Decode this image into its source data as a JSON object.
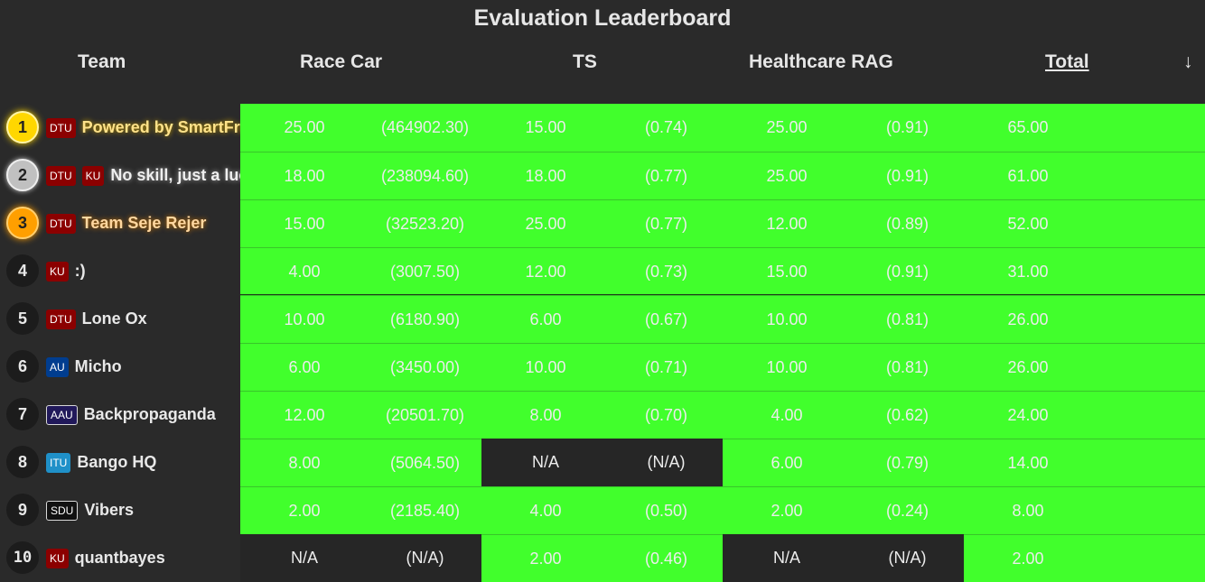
{
  "title": "Evaluation Leaderboard",
  "headers": {
    "team": "Team",
    "race_car": "Race Car",
    "ts": "TS",
    "healthcare_rag": "Healthcare RAG",
    "total": "Total",
    "sort_arrow": "↓"
  },
  "colors": {
    "green": "#41ff2c",
    "na_background": "#262626",
    "gold": "#ffd700",
    "silver": "#c0c0c0",
    "bronze": "#ff9f00"
  },
  "rows": [
    {
      "rank": "1",
      "uni": [
        "DTU"
      ],
      "team": "Powered by SmartFrames",
      "race_score": "25.00",
      "race_raw": "(464902.30)",
      "ts_score": "15.00",
      "ts_raw": "(0.74)",
      "rag_score": "25.00",
      "rag_raw": "(0.91)",
      "total": "65.00"
    },
    {
      "rank": "2",
      "uni": [
        "DTU",
        "KU"
      ],
      "team": "No skill, just a luck",
      "race_score": "18.00",
      "race_raw": "(238094.60)",
      "ts_score": "18.00",
      "ts_raw": "(0.77)",
      "rag_score": "25.00",
      "rag_raw": "(0.91)",
      "total": "61.00"
    },
    {
      "rank": "3",
      "uni": [
        "DTU"
      ],
      "team": "Team Seje Rejer",
      "race_score": "15.00",
      "race_raw": "(32523.20)",
      "ts_score": "25.00",
      "ts_raw": "(0.77)",
      "rag_score": "12.00",
      "rag_raw": "(0.89)",
      "total": "52.00"
    },
    {
      "rank": "4",
      "uni": [
        "KU"
      ],
      "team": ":)",
      "race_score": "4.00",
      "race_raw": "(3007.50)",
      "ts_score": "12.00",
      "ts_raw": "(0.73)",
      "rag_score": "15.00",
      "rag_raw": "(0.91)",
      "total": "31.00"
    },
    {
      "rank": "5",
      "uni": [
        "DTU"
      ],
      "team": "Lone Ox",
      "race_score": "10.00",
      "race_raw": "(6180.90)",
      "ts_score": "6.00",
      "ts_raw": "(0.67)",
      "rag_score": "10.00",
      "rag_raw": "(0.81)",
      "total": "26.00"
    },
    {
      "rank": "6",
      "uni": [
        "AU"
      ],
      "team": "Micho",
      "race_score": "6.00",
      "race_raw": "(3450.00)",
      "ts_score": "10.00",
      "ts_raw": "(0.71)",
      "rag_score": "10.00",
      "rag_raw": "(0.81)",
      "total": "26.00"
    },
    {
      "rank": "7",
      "uni": [
        "AAU"
      ],
      "team": "Backpropaganda",
      "race_score": "12.00",
      "race_raw": "(20501.70)",
      "ts_score": "8.00",
      "ts_raw": "(0.70)",
      "rag_score": "4.00",
      "rag_raw": "(0.62)",
      "total": "24.00"
    },
    {
      "rank": "8",
      "uni": [
        "ITU"
      ],
      "team": "Bango HQ",
      "race_score": "8.00",
      "race_raw": "(5064.50)",
      "ts_score": "N/A",
      "ts_raw": "(N/A)",
      "rag_score": "6.00",
      "rag_raw": "(0.79)",
      "total": "14.00"
    },
    {
      "rank": "9",
      "uni": [
        "SDU"
      ],
      "team": "Vibers",
      "race_score": "2.00",
      "race_raw": "(2185.40)",
      "ts_score": "4.00",
      "ts_raw": "(0.50)",
      "rag_score": "2.00",
      "rag_raw": "(0.24)",
      "total": "8.00"
    },
    {
      "rank": "10",
      "uni": [
        "KU"
      ],
      "team": "quantbayes",
      "race_score": "N/A",
      "race_raw": "(N/A)",
      "ts_score": "2.00",
      "ts_raw": "(0.46)",
      "rag_score": "N/A",
      "rag_raw": "(N/A)",
      "total": "2.00"
    }
  ]
}
